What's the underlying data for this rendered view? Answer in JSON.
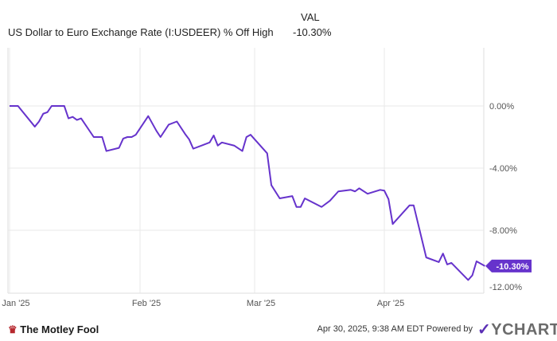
{
  "header": {
    "series_label": "US Dollar to Euro Exchange Rate (I:USDEER) % Off High",
    "val_header": "VAL",
    "value": "-10.30%"
  },
  "footer": {
    "timestamp": "Apr 30, 2025, 9:38 AM EDT Powered by",
    "brand": "YCHARTS",
    "logo_text": "The Motley Fool"
  },
  "chart_data": {
    "type": "line",
    "title": "",
    "xlabel": "",
    "ylabel": "",
    "ylim": [
      -12,
      0
    ],
    "y_ticks": [
      "0.00%",
      "-4.00%",
      "-8.00%",
      "-12.00%"
    ],
    "x_ticks": [
      "Jan '25",
      "Feb '25",
      "Mar '25",
      "Apr '25"
    ],
    "grid": true,
    "line_color": "#6633cc",
    "last_value_label": "-10.30%",
    "series": [
      {
        "name": "US Dollar to Euro Exchange Rate (I:USDEER) % Off High",
        "points": [
          [
            "2025-01-01",
            0
          ],
          [
            "2025-01-03",
            0
          ],
          [
            "2025-01-07",
            -1.33
          ],
          [
            "2025-01-08",
            -1.0
          ],
          [
            "2025-01-09",
            -0.5
          ],
          [
            "2025-01-10",
            -0.4
          ],
          [
            "2025-01-11",
            0
          ],
          [
            "2025-01-14",
            0
          ],
          [
            "2025-01-15",
            -0.8
          ],
          [
            "2025-01-16",
            -0.7
          ],
          [
            "2025-01-17",
            -0.9
          ],
          [
            "2025-01-18",
            -0.8
          ],
          [
            "2025-01-21",
            -2.0
          ],
          [
            "2025-01-23",
            -2.0
          ],
          [
            "2025-01-24",
            -2.9
          ],
          [
            "2025-01-27",
            -2.7
          ],
          [
            "2025-01-28",
            -2.1
          ],
          [
            "2025-01-29",
            -2.0
          ],
          [
            "2025-01-30",
            -2.0
          ],
          [
            "2025-01-31",
            -1.85
          ],
          [
            "2025-02-03",
            -0.65
          ],
          [
            "2025-02-05",
            -1.6
          ],
          [
            "2025-02-06",
            -2.0
          ],
          [
            "2025-02-08",
            -1.2
          ],
          [
            "2025-02-10",
            -1.0
          ],
          [
            "2025-02-12",
            -1.8
          ],
          [
            "2025-02-13",
            -2.15
          ],
          [
            "2025-02-14",
            -2.75
          ],
          [
            "2025-02-18",
            -2.35
          ],
          [
            "2025-02-19",
            -1.9
          ],
          [
            "2025-02-20",
            -2.55
          ],
          [
            "2025-02-21",
            -2.35
          ],
          [
            "2025-02-24",
            -2.55
          ],
          [
            "2025-02-26",
            -2.9
          ],
          [
            "2025-02-27",
            -2.0
          ],
          [
            "2025-02-28",
            -1.85
          ],
          [
            "2025-03-04",
            -3.05
          ],
          [
            "2025-03-05",
            -5.1
          ],
          [
            "2025-03-07",
            -5.95
          ],
          [
            "2025-03-10",
            -5.8
          ],
          [
            "2025-03-11",
            -6.5
          ],
          [
            "2025-03-12",
            -6.5
          ],
          [
            "2025-03-13",
            -5.95
          ],
          [
            "2025-03-17",
            -6.5
          ],
          [
            "2025-03-19",
            -6.1
          ],
          [
            "2025-03-21",
            -5.5
          ],
          [
            "2025-03-24",
            -5.4
          ],
          [
            "2025-03-25",
            -5.5
          ],
          [
            "2025-03-26",
            -5.3
          ],
          [
            "2025-03-28",
            -5.65
          ],
          [
            "2025-03-31",
            -5.4
          ],
          [
            "2025-04-01",
            -5.45
          ],
          [
            "2025-04-02",
            -6.0
          ],
          [
            "2025-04-03",
            -7.6
          ],
          [
            "2025-04-07",
            -6.4
          ],
          [
            "2025-04-08",
            -6.4
          ],
          [
            "2025-04-11",
            -9.75
          ],
          [
            "2025-04-14",
            -10.05
          ],
          [
            "2025-04-15",
            -9.5
          ],
          [
            "2025-04-16",
            -10.2
          ],
          [
            "2025-04-17",
            -10.1
          ],
          [
            "2025-04-21",
            -11.2
          ],
          [
            "2025-04-22",
            -10.9
          ],
          [
            "2025-04-23",
            -10.0
          ],
          [
            "2025-04-25",
            -10.3
          ]
        ]
      }
    ]
  }
}
